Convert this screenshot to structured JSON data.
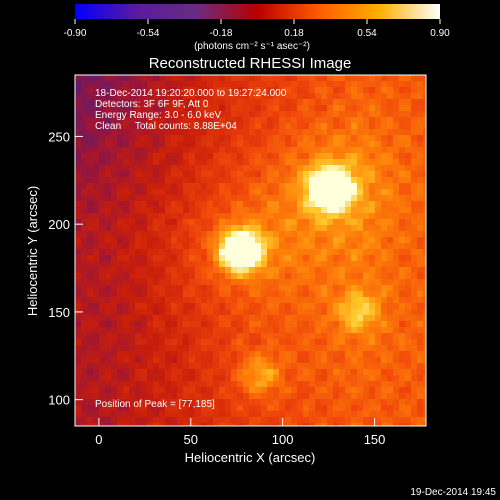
{
  "chart_data": {
    "type": "heatmap",
    "title": "Reconstructed RHESSI Image",
    "xlabel": "Heliocentric X (arcsec)",
    "ylabel": "Heliocentric Y (arcsec)",
    "xlim": [
      -13,
      178
    ],
    "ylim": [
      85,
      285
    ],
    "x_ticks": [
      0,
      50,
      100,
      150
    ],
    "y_ticks": [
      100,
      150,
      200,
      250
    ],
    "annotations": [
      "18-Dec-2014 19:20:20.000 to 19:27:24.000",
      "Detectors: 3F 6F 9F, Att 0",
      "Energy Range: 3.0 - 6.0 keV",
      "Clean     Total counts: 8.88E+04"
    ],
    "peak_label": "Position of Peak = [77,185]",
    "peak": [
      77,
      185
    ],
    "sources": [
      {
        "x": 77,
        "y": 185,
        "relative_intensity": 1.0
      },
      {
        "x": 126,
        "y": 220,
        "relative_intensity": 0.95
      },
      {
        "x": 87,
        "y": 114,
        "relative_intensity": 0.35
      },
      {
        "x": 141,
        "y": 150,
        "relative_intensity": 0.3
      }
    ],
    "colorbar": {
      "ticks": [
        "-0.90",
        "-0.54",
        "-0.18",
        "0.18",
        "0.54",
        "0.90"
      ],
      "range": [
        -0.9,
        0.9
      ],
      "unit_label": "(photons cm⁻² s⁻¹ asec⁻²)",
      "colors": [
        "#0000ff",
        "#5a1aa0",
        "#6a2c80",
        "#b80000",
        "#ff5a00",
        "#ffb000",
        "#ffffff"
      ]
    }
  },
  "footer_timestamp": "19-Dec-2014 19:45"
}
